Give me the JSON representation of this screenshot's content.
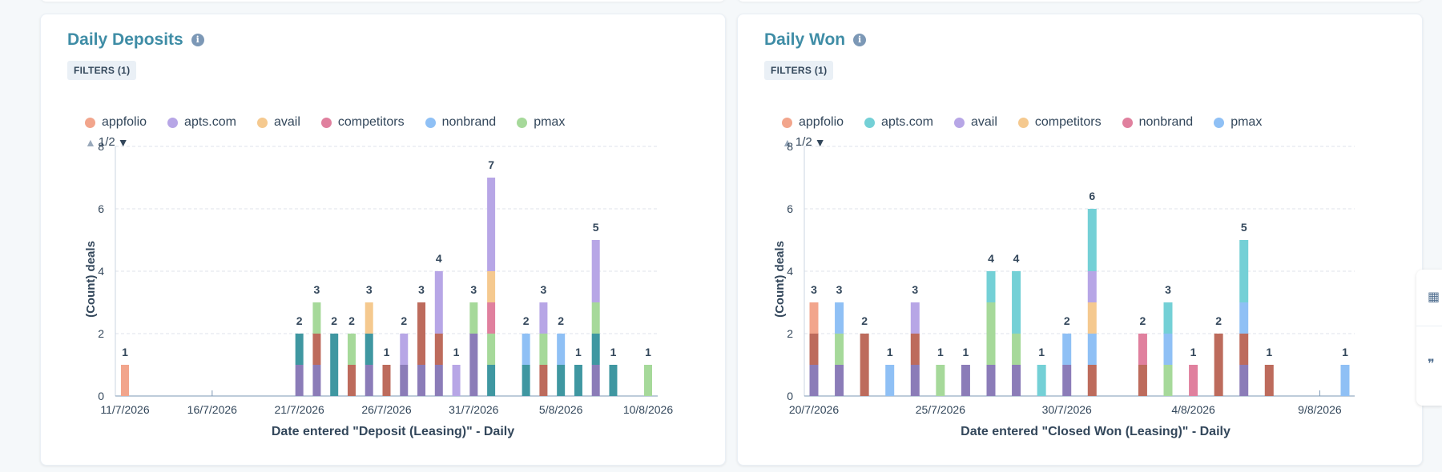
{
  "cards": [
    {
      "title": "Daily Deposits",
      "filter_label": "FILTERS (1)",
      "pager": "1/2",
      "chart_data": {
        "type": "bar",
        "stacked": true,
        "xlabel": "Date entered \"Deposit (Leasing)\" - Daily",
        "ylabel": "(Count) deals",
        "ylim": [
          0,
          8
        ],
        "yticks": [
          0,
          2,
          4,
          6,
          8
        ],
        "x_start": "11/7/2026",
        "x_end": "10/8/2026",
        "x_tick_labels": [
          "11/7/2026",
          "16/7/2026",
          "21/7/2026",
          "26/7/2026",
          "31/7/2026",
          "5/8/2026",
          "10/8/2026"
        ],
        "legend": [
          {
            "name": "appfolio",
            "color": "#f2a58c"
          },
          {
            "name": "apts.com",
            "color": "#b7a6e6"
          },
          {
            "name": "avail",
            "color": "#f5c98f"
          },
          {
            "name": "competitors",
            "color": "#e0809e"
          },
          {
            "name": "nonbrand",
            "color": "#8fc0f5"
          },
          {
            "name": "pmax",
            "color": "#a6d99a"
          }
        ],
        "bars": [
          {
            "date": "11/7/2026",
            "total": 1,
            "segments": [
              {
                "color": "#f2a58c",
                "value": 1
              }
            ]
          },
          {
            "date": "21/7/2026",
            "total": 2,
            "segments": [
              {
                "color": "#8b7cb8",
                "value": 1
              },
              {
                "color": "#3f97a1",
                "value": 1
              }
            ]
          },
          {
            "date": "22/7/2026",
            "total": 3,
            "segments": [
              {
                "color": "#8b7cb8",
                "value": 1
              },
              {
                "color": "#bd6b5c",
                "value": 1
              },
              {
                "color": "#a6d99a",
                "value": 1
              }
            ]
          },
          {
            "date": "23/7/2026",
            "total": 2,
            "segments": [
              {
                "color": "#3f97a1",
                "value": 2
              }
            ]
          },
          {
            "date": "24/7/2026",
            "total": 2,
            "segments": [
              {
                "color": "#bd6b5c",
                "value": 1
              },
              {
                "color": "#a6d99a",
                "value": 1
              }
            ]
          },
          {
            "date": "25/7/2026",
            "total": 3,
            "segments": [
              {
                "color": "#8b7cb8",
                "value": 1
              },
              {
                "color": "#3f97a1",
                "value": 1
              },
              {
                "color": "#f5c98f",
                "value": 1
              }
            ]
          },
          {
            "date": "26/7/2026",
            "total": 1,
            "segments": [
              {
                "color": "#bd6b5c",
                "value": 1
              }
            ]
          },
          {
            "date": "27/7/2026",
            "total": 2,
            "segments": [
              {
                "color": "#8b7cb8",
                "value": 1
              },
              {
                "color": "#b7a6e6",
                "value": 1
              }
            ]
          },
          {
            "date": "28/7/2026",
            "total": 3,
            "segments": [
              {
                "color": "#8b7cb8",
                "value": 1
              },
              {
                "color": "#bd6b5c",
                "value": 2
              }
            ]
          },
          {
            "date": "29/7/2026",
            "total": 4,
            "segments": [
              {
                "color": "#8b7cb8",
                "value": 1
              },
              {
                "color": "#bd6b5c",
                "value": 1
              },
              {
                "color": "#b7a6e6",
                "value": 2
              }
            ]
          },
          {
            "date": "30/7/2026",
            "total": 1,
            "segments": [
              {
                "color": "#b7a6e6",
                "value": 1
              }
            ]
          },
          {
            "date": "31/7/2026",
            "total": 3,
            "segments": [
              {
                "color": "#8b7cb8",
                "value": 2
              },
              {
                "color": "#a6d99a",
                "value": 1
              }
            ]
          },
          {
            "date": "1/8/2026",
            "total": 7,
            "segments": [
              {
                "color": "#3f97a1",
                "value": 1
              },
              {
                "color": "#a6d99a",
                "value": 1
              },
              {
                "color": "#e0809e",
                "value": 1
              },
              {
                "color": "#f5c98f",
                "value": 1
              },
              {
                "color": "#b7a6e6",
                "value": 3
              }
            ]
          },
          {
            "date": "3/8/2026",
            "total": 2,
            "segments": [
              {
                "color": "#3f97a1",
                "value": 1
              },
              {
                "color": "#8fc0f5",
                "value": 1
              }
            ]
          },
          {
            "date": "4/8/2026",
            "total": 3,
            "segments": [
              {
                "color": "#bd6b5c",
                "value": 1
              },
              {
                "color": "#a6d99a",
                "value": 1
              },
              {
                "color": "#b7a6e6",
                "value": 1
              }
            ]
          },
          {
            "date": "5/8/2026",
            "total": 2,
            "segments": [
              {
                "color": "#3f97a1",
                "value": 1
              },
              {
                "color": "#8fc0f5",
                "value": 1
              }
            ]
          },
          {
            "date": "6/8/2026",
            "total": 1,
            "segments": [
              {
                "color": "#3f97a1",
                "value": 1
              }
            ]
          },
          {
            "date": "7/8/2026",
            "total": 5,
            "segments": [
              {
                "color": "#8b7cb8",
                "value": 1
              },
              {
                "color": "#3f97a1",
                "value": 1
              },
              {
                "color": "#a6d99a",
                "value": 1
              },
              {
                "color": "#b7a6e6",
                "value": 2
              }
            ]
          },
          {
            "date": "8/8/2026",
            "total": 1,
            "segments": [
              {
                "color": "#3f97a1",
                "value": 1
              }
            ]
          },
          {
            "date": "10/8/2026",
            "total": 1,
            "segments": [
              {
                "color": "#a6d99a",
                "value": 1
              }
            ]
          }
        ]
      }
    },
    {
      "title": "Daily Won",
      "filter_label": "FILTERS (1)",
      "pager": "1/2",
      "chart_data": {
        "type": "bar",
        "stacked": true,
        "xlabel": "Date entered \"Closed Won (Leasing)\" - Daily",
        "ylabel": "(Count) deals",
        "ylim": [
          0,
          8
        ],
        "yticks": [
          0,
          2,
          4,
          6,
          8
        ],
        "x_start": "20/7/2026",
        "x_end": "10/8/2026",
        "x_tick_labels": [
          "20/7/2026",
          "25/7/2026",
          "30/7/2026",
          "4/8/2026",
          "9/8/2026"
        ],
        "legend": [
          {
            "name": "appfolio",
            "color": "#f2a58c"
          },
          {
            "name": "apts.com",
            "color": "#74d0d6"
          },
          {
            "name": "avail",
            "color": "#b7a6e6"
          },
          {
            "name": "competitors",
            "color": "#f5c98f"
          },
          {
            "name": "nonbrand",
            "color": "#e0809e"
          },
          {
            "name": "pmax",
            "color": "#8fc0f5"
          }
        ],
        "bars": [
          {
            "date": "20/7/2026",
            "total": 3,
            "segments": [
              {
                "color": "#8b7cb8",
                "value": 1
              },
              {
                "color": "#bd6b5c",
                "value": 1
              },
              {
                "color": "#f2a58c",
                "value": 1
              }
            ]
          },
          {
            "date": "21/7/2026",
            "total": 3,
            "segments": [
              {
                "color": "#8b7cb8",
                "value": 1
              },
              {
                "color": "#a6d99a",
                "value": 1
              },
              {
                "color": "#8fc0f5",
                "value": 1
              }
            ]
          },
          {
            "date": "22/7/2026",
            "total": 2,
            "segments": [
              {
                "color": "#bd6b5c",
                "value": 2
              }
            ]
          },
          {
            "date": "23/7/2026",
            "total": 1,
            "segments": [
              {
                "color": "#8fc0f5",
                "value": 1
              }
            ]
          },
          {
            "date": "24/7/2026",
            "total": 3,
            "segments": [
              {
                "color": "#8b7cb8",
                "value": 1
              },
              {
                "color": "#bd6b5c",
                "value": 1
              },
              {
                "color": "#b7a6e6",
                "value": 1
              }
            ]
          },
          {
            "date": "25/7/2026",
            "total": 1,
            "segments": [
              {
                "color": "#a6d99a",
                "value": 1
              }
            ]
          },
          {
            "date": "26/7/2026",
            "total": 1,
            "segments": [
              {
                "color": "#8b7cb8",
                "value": 1
              }
            ]
          },
          {
            "date": "27/7/2026",
            "total": 4,
            "segments": [
              {
                "color": "#8b7cb8",
                "value": 1
              },
              {
                "color": "#a6d99a",
                "value": 2
              },
              {
                "color": "#74d0d6",
                "value": 1
              }
            ]
          },
          {
            "date": "28/7/2026",
            "total": 4,
            "segments": [
              {
                "color": "#8b7cb8",
                "value": 1
              },
              {
                "color": "#a6d99a",
                "value": 1
              },
              {
                "color": "#74d0d6",
                "value": 2
              }
            ]
          },
          {
            "date": "29/7/2026",
            "total": 1,
            "segments": [
              {
                "color": "#74d0d6",
                "value": 1
              }
            ]
          },
          {
            "date": "30/7/2026",
            "total": 2,
            "segments": [
              {
                "color": "#8b7cb8",
                "value": 1
              },
              {
                "color": "#8fc0f5",
                "value": 1
              }
            ]
          },
          {
            "date": "31/7/2026",
            "total": 6,
            "segments": [
              {
                "color": "#bd6b5c",
                "value": 1
              },
              {
                "color": "#8fc0f5",
                "value": 1
              },
              {
                "color": "#f5c98f",
                "value": 1
              },
              {
                "color": "#b7a6e6",
                "value": 1
              },
              {
                "color": "#74d0d6",
                "value": 2
              }
            ]
          },
          {
            "date": "2/8/2026",
            "total": 2,
            "segments": [
              {
                "color": "#bd6b5c",
                "value": 1
              },
              {
                "color": "#e0809e",
                "value": 1
              }
            ]
          },
          {
            "date": "3/8/2026",
            "total": 3,
            "segments": [
              {
                "color": "#a6d99a",
                "value": 1
              },
              {
                "color": "#8fc0f5",
                "value": 1
              },
              {
                "color": "#74d0d6",
                "value": 1
              }
            ]
          },
          {
            "date": "4/8/2026",
            "total": 1,
            "segments": [
              {
                "color": "#e0809e",
                "value": 1
              }
            ]
          },
          {
            "date": "5/8/2026",
            "total": 2,
            "segments": [
              {
                "color": "#bd6b5c",
                "value": 2
              }
            ]
          },
          {
            "date": "6/8/2026",
            "total": 5,
            "segments": [
              {
                "color": "#8b7cb8",
                "value": 1
              },
              {
                "color": "#bd6b5c",
                "value": 1
              },
              {
                "color": "#8fc0f5",
                "value": 1
              },
              {
                "color": "#74d0d6",
                "value": 2
              }
            ]
          },
          {
            "date": "7/8/2026",
            "total": 1,
            "segments": [
              {
                "color": "#bd6b5c",
                "value": 1
              }
            ]
          },
          {
            "date": "10/8/2026",
            "total": 1,
            "segments": [
              {
                "color": "#8fc0f5",
                "value": 1
              }
            ]
          }
        ]
      }
    }
  ]
}
